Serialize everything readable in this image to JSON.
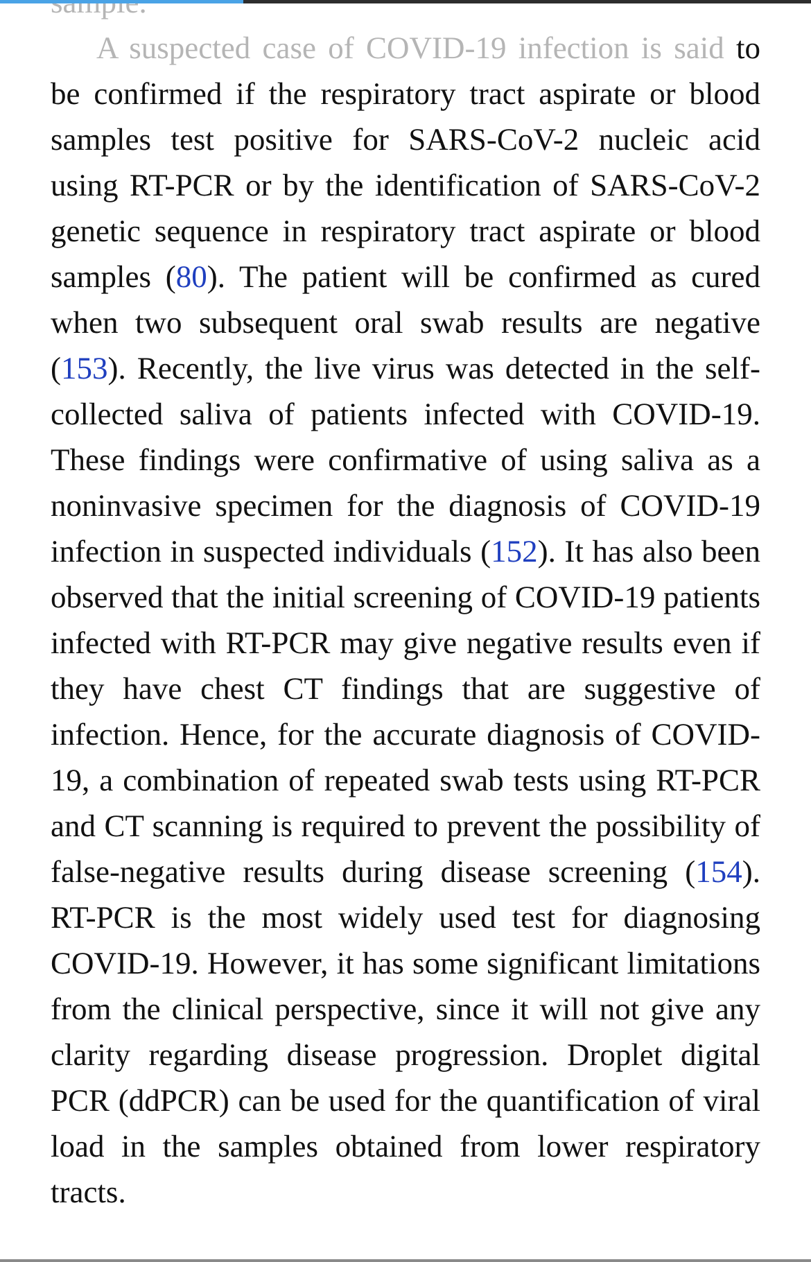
{
  "reader": {
    "progress_fraction": 0.3
  },
  "paragraphs": {
    "prev_tail": "sample.",
    "main": {
      "faded_lead": "A suspected case of COVID-19 infection is said",
      "s1": " to be confirmed if the respiratory tract aspirate or blood samples test positive for SARS-CoV-2 nucleic acid using RT-PCR or by the identification of SARS-CoV-2 genetic sequence in respiratory tract aspirate or blood samples (",
      "ref1": "80",
      "s2": "). The patient will be confirmed as cured when two subsequent oral swab results are negative (",
      "ref2": "153",
      "s3": "). Recently, the live virus was detected in the self-collected saliva of patients infected with COVID-19. These findings were confirmative of using saliva as a noninvasive specimen for the diagnosis of COVID-19 infection in suspected individuals (",
      "ref3": "152",
      "s4": "). It has also been observed that the initial screening of COVID-19 patients infected with RT-PCR may give negative results even if they have chest CT findings that are suggestive of infection. Hence, for the accurate diagnosis of COVID-19, a combination of repeated swab tests using RT-PCR and CT scanning is required to prevent the possibility of false-negative results during disease screening (",
      "ref4": "154",
      "s5": "). RT-PCR is the most widely used test for diagnosing COVID-19. However, it has some significant limitations from the clinical perspective, since it will not give any clarity regarding disease progression. Droplet digital PCR (ddPCR) can be used for the quantification of viral load in the samples obtained from lower respiratory tracts."
    }
  },
  "colors": {
    "text": "#111111",
    "faded_text": "#b5b5b5",
    "link": "#1f3fbf",
    "progress": "#4aa3e6",
    "top_bar": "#2e2e2e"
  }
}
